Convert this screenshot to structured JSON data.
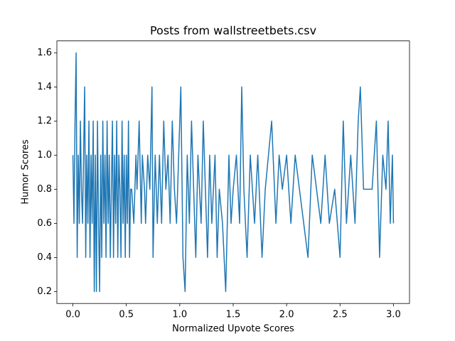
{
  "chart_data": {
    "type": "line",
    "title": "Posts from wallstreetbets.csv",
    "x_label": "Normalized Upvote Scores",
    "y_label": "Humor Scores",
    "color": "#1f77b4",
    "x": [
      0.0,
      0.01,
      0.02,
      0.03,
      0.04,
      0.05,
      0.06,
      0.07,
      0.08,
      0.09,
      0.1,
      0.11,
      0.12,
      0.13,
      0.14,
      0.15,
      0.16,
      0.17,
      0.18,
      0.19,
      0.2,
      0.21,
      0.22,
      0.23,
      0.24,
      0.25,
      0.26,
      0.27,
      0.28,
      0.29,
      0.3,
      0.31,
      0.32,
      0.33,
      0.34,
      0.35,
      0.36,
      0.37,
      0.38,
      0.39,
      0.4,
      0.41,
      0.42,
      0.43,
      0.44,
      0.45,
      0.46,
      0.47,
      0.48,
      0.49,
      0.5,
      0.51,
      0.52,
      0.53,
      0.54,
      0.55,
      0.57,
      0.59,
      0.6,
      0.62,
      0.64,
      0.65,
      0.67,
      0.68,
      0.7,
      0.72,
      0.74,
      0.75,
      0.77,
      0.79,
      0.81,
      0.83,
      0.85,
      0.87,
      0.89,
      0.91,
      0.93,
      0.95,
      0.97,
      0.99,
      1.01,
      1.03,
      1.05,
      1.07,
      1.09,
      1.11,
      1.13,
      1.15,
      1.17,
      1.2,
      1.22,
      1.24,
      1.26,
      1.28,
      1.3,
      1.33,
      1.35,
      1.37,
      1.4,
      1.43,
      1.46,
      1.48,
      1.5,
      1.53,
      1.56,
      1.58,
      1.6,
      1.63,
      1.66,
      1.7,
      1.73,
      1.77,
      1.8,
      1.83,
      1.86,
      1.9,
      1.93,
      1.96,
      2.0,
      2.04,
      2.08,
      2.12,
      2.16,
      2.2,
      2.24,
      2.28,
      2.32,
      2.36,
      2.4,
      2.45,
      2.5,
      2.53,
      2.56,
      2.6,
      2.64,
      2.67,
      2.69,
      2.72,
      2.76,
      2.8,
      2.84,
      2.87,
      2.9,
      2.93,
      2.95,
      2.97,
      2.99,
      3.0
    ],
    "values": [
      1.0,
      0.6,
      1.2,
      1.6,
      0.4,
      1.0,
      0.6,
      1.2,
      0.8,
      0.6,
      1.0,
      1.4,
      0.4,
      1.0,
      0.6,
      1.2,
      0.4,
      1.0,
      0.6,
      1.2,
      0.2,
      1.0,
      0.2,
      1.2,
      0.6,
      0.2,
      1.0,
      0.4,
      1.2,
      0.6,
      1.0,
      0.4,
      1.2,
      0.6,
      1.0,
      0.4,
      0.8,
      1.2,
      0.4,
      1.0,
      0.6,
      1.2,
      0.4,
      1.0,
      0.8,
      0.4,
      1.2,
      0.6,
      1.0,
      0.4,
      1.0,
      0.6,
      1.2,
      0.4,
      0.8,
      0.8,
      0.6,
      1.0,
      0.8,
      1.2,
      0.6,
      1.0,
      0.8,
      0.6,
      1.0,
      0.8,
      1.4,
      0.4,
      1.0,
      0.6,
      1.0,
      0.6,
      1.2,
      0.8,
      1.0,
      0.6,
      1.2,
      0.8,
      0.6,
      1.0,
      1.4,
      0.4,
      0.2,
      1.0,
      0.6,
      1.2,
      0.8,
      0.4,
      1.0,
      0.6,
      1.2,
      0.8,
      0.4,
      1.0,
      0.6,
      1.0,
      0.4,
      0.8,
      0.6,
      0.2,
      1.0,
      0.6,
      0.8,
      1.0,
      0.6,
      1.4,
      0.8,
      0.4,
      1.0,
      0.6,
      1.0,
      0.4,
      0.8,
      1.0,
      1.2,
      0.6,
      1.0,
      0.8,
      1.0,
      0.6,
      1.0,
      0.8,
      0.6,
      0.4,
      1.0,
      0.8,
      0.6,
      1.0,
      0.6,
      0.8,
      0.4,
      1.2,
      0.6,
      1.0,
      0.6,
      1.2,
      1.4,
      0.8,
      0.8,
      0.8,
      1.2,
      0.4,
      1.0,
      0.8,
      1.2,
      0.6,
      1.0,
      0.6
    ],
    "xlim": [
      -0.15,
      3.15
    ],
    "ylim": [
      0.13,
      1.67
    ],
    "xticks": [
      {
        "value": 0,
        "label": "0.0"
      },
      0.5,
      {
        "value": 1,
        "label": "1.0"
      },
      1.5,
      {
        "value": 2,
        "label": "2.0"
      },
      2.5,
      {
        "value": 3,
        "label": "3.0"
      }
    ],
    "yticks": [
      0.2,
      0.4,
      0.6,
      0.8,
      {
        "value": 1,
        "label": "1.0"
      },
      1.2,
      1.4,
      1.6
    ]
  }
}
